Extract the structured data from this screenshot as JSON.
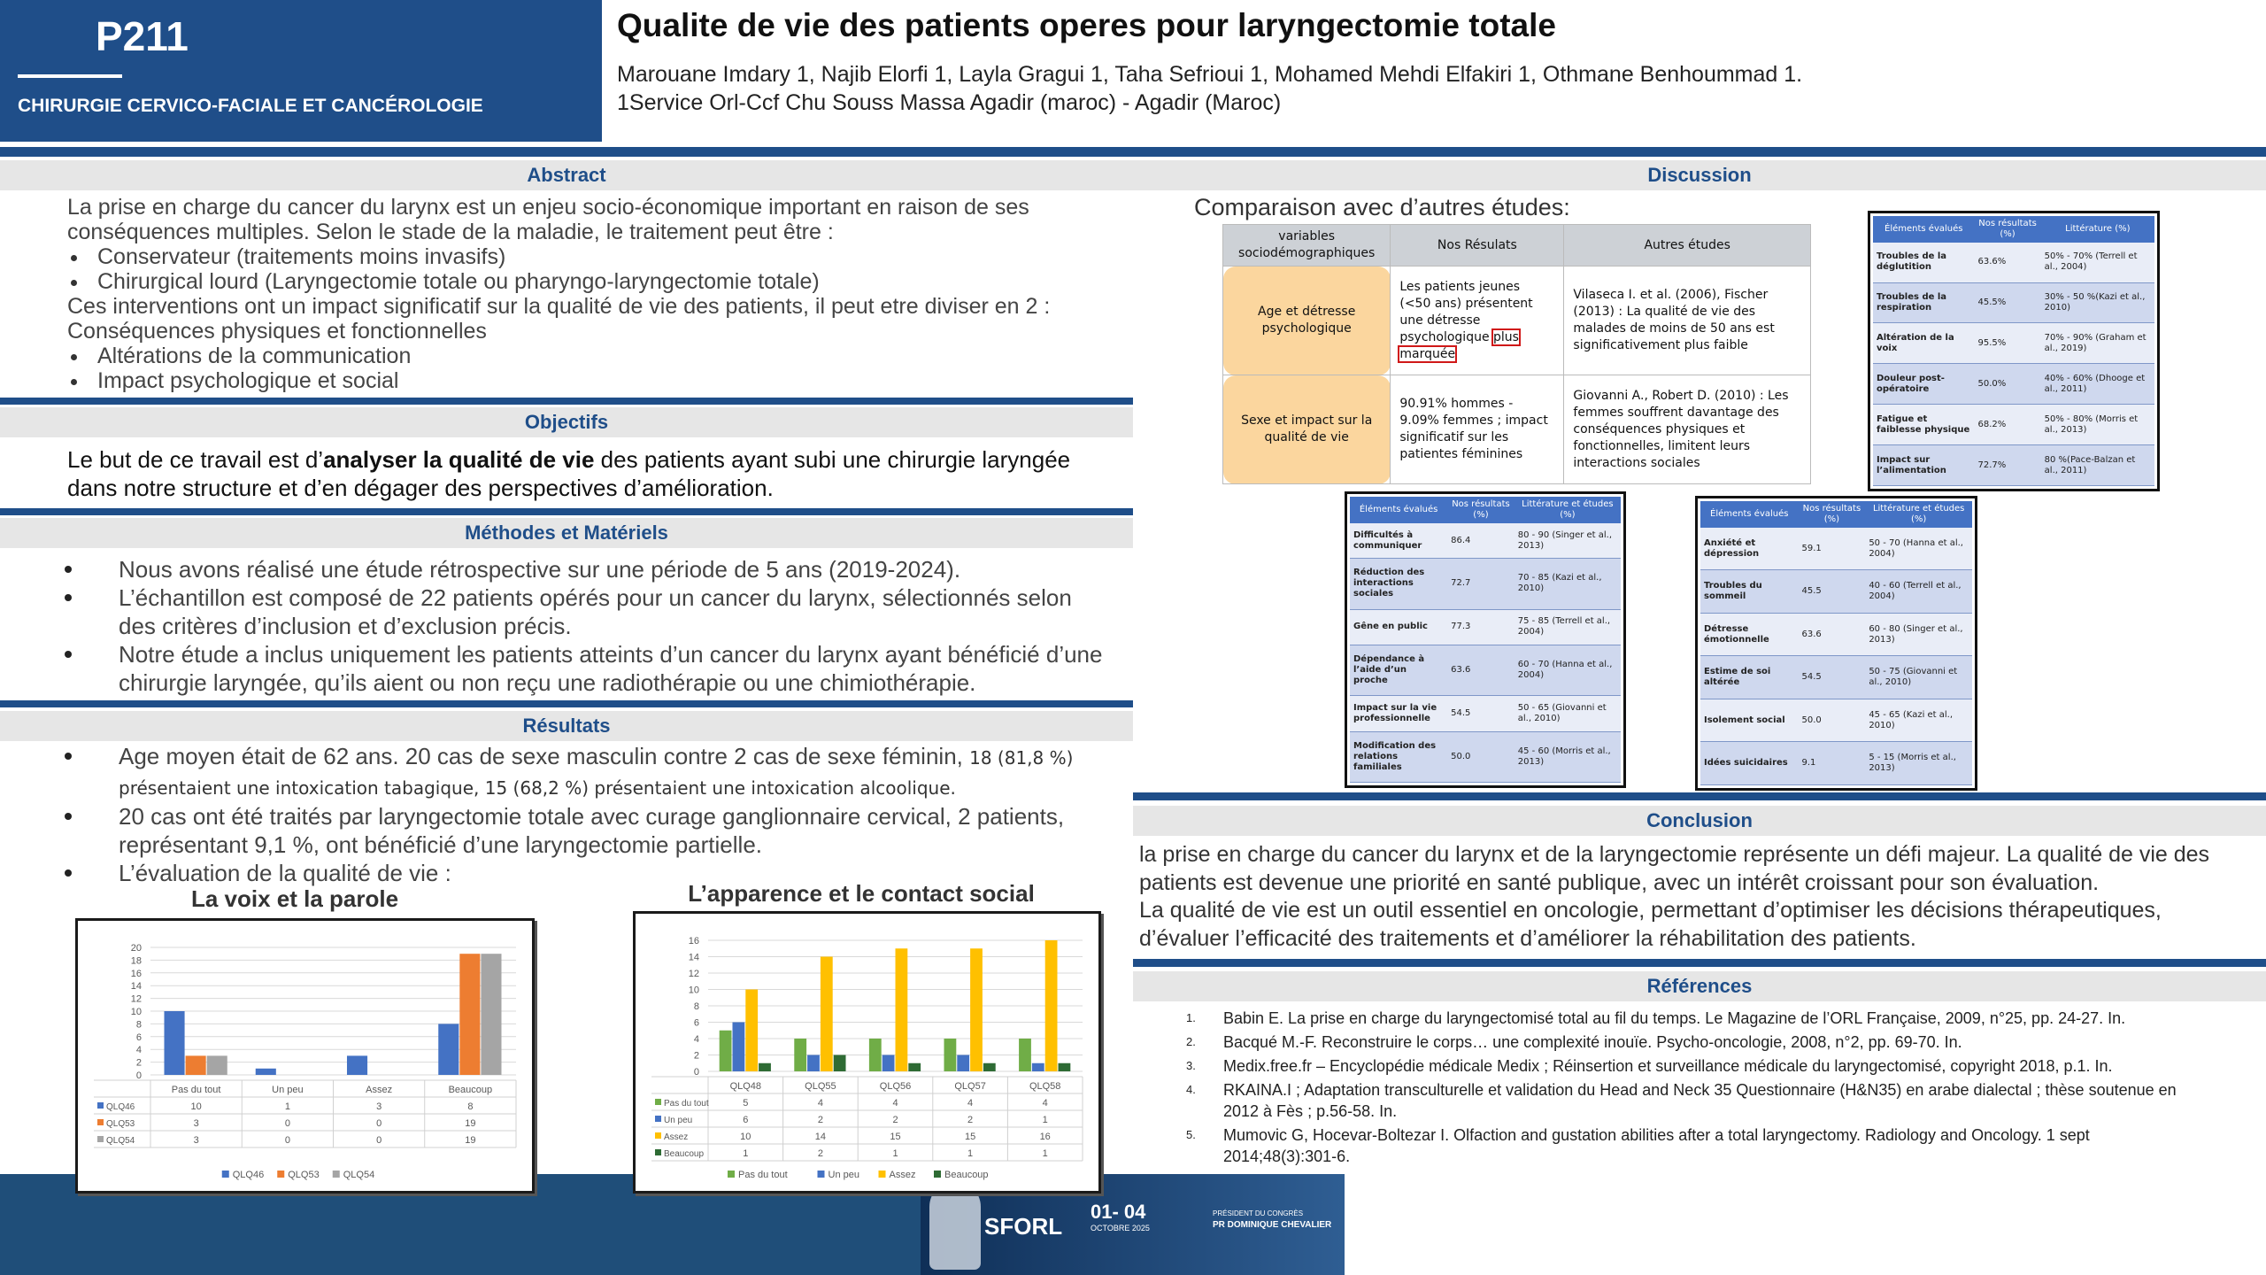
{
  "header": {
    "code": "P211",
    "section": "CHIRURGIE CERVICO-FACIALE ET CANCÉROLOGIE",
    "title": "Qualite de vie des patients operes pour laryngectomie totale",
    "authors": "Marouane Imdary 1, Najib Elorfi 1, Layla Gragui 1, Taha Sefrioui 1, Mohamed Mehdi Elfakiri 1, Othmane Benhoummad 1.",
    "affiliation": "1Service Orl-Ccf Chu Souss Massa Agadir (maroc) - Agadir (Maroc)"
  },
  "abstract": {
    "heading": "Abstract",
    "intro": "La prise en charge du cancer du larynx est un enjeu socio-économique important en raison de ses conséquences multiples. Selon le stade de la maladie, le traitement peut être :",
    "bullets_1": [
      "Conservateur (traitements moins invasifs)",
      "Chirurgical lourd (Laryngectomie totale ou pharyngo-laryngectomie totale)"
    ],
    "middle": [
      "Ces interventions ont un impact significatif sur la qualité de vie des patients, il peut etre diviser en 2 :",
      "Conséquences physiques et fonctionnelles"
    ],
    "bullets_2": [
      "Altérations de la communication",
      "Impact psychologique et social"
    ]
  },
  "objectifs": {
    "heading": "Objectifs",
    "before": "Le but de ce travail est d’",
    "bold": "analyser la qualité de vie",
    "after": " des patients ayant subi une chirurgie laryngée dans notre structure et d’en dégager des perspectives d’amélioration."
  },
  "methodes": {
    "heading": "Méthodes et Matériels",
    "bullets": [
      "Nous avons réalisé une étude rétrospective sur une période de 5 ans (2019-2024).",
      "L’échantillon est composé de 22 patients opérés pour un cancer du larynx, sélectionnés selon des critères d’inclusion et d’exclusion précis.",
      "Notre étude a inclus uniquement les patients atteints d’un cancer du larynx ayant bénéficié d’une chirurgie laryngée, qu’ils aient ou non reçu une radiothérapie ou une chimiothérapie."
    ]
  },
  "resultats": {
    "heading": "Résultats",
    "first_bullet": {
      "text": "Age moyen était de 62 ans. 20 cas de sexe masculin contre 2 cas de sexe féminin,",
      "small": "18 (81,8 %) présentaient une intoxication tabagique, 15 (68,2 %) présentaient une intoxication alcoolique."
    },
    "bullets": [
      "20 cas ont été traités par laryngectomie totale avec curage ganglionnaire cervical, 2 patients, représentant 9,1 %, ont bénéficié d’une laryngectomie partielle.",
      "L’évaluation de la qualité de vie :"
    ]
  },
  "chart_data": [
    {
      "type": "bar",
      "title": "La voix et la parole",
      "categories": [
        "Pas du tout",
        "Un peu",
        "Assez",
        "Beaucoup"
      ],
      "series": [
        {
          "name": "QLQ46",
          "color": "#4472c4",
          "values": [
            10,
            1,
            3,
            8
          ]
        },
        {
          "name": "QLQ53",
          "color": "#ed7d31",
          "values": [
            3,
            0,
            0,
            19
          ]
        },
        {
          "name": "QLQ54",
          "color": "#a5a5a5",
          "values": [
            3,
            0,
            0,
            19
          ]
        }
      ],
      "ylim": [
        0,
        20
      ],
      "yticks": [
        0,
        2,
        4,
        6,
        8,
        10,
        12,
        14,
        16,
        18,
        20
      ],
      "grid": true
    },
    {
      "type": "bar",
      "title": "L’apparence et le contact social",
      "categories": [
        "QLQ48",
        "QLQ55",
        "QLQ56",
        "QLQ57",
        "QLQ58"
      ],
      "series": [
        {
          "name": "Pas du tout",
          "color": "#70ad47",
          "values": [
            5,
            4,
            4,
            4,
            4
          ]
        },
        {
          "name": "Un peu",
          "color": "#4472c4",
          "values": [
            6,
            2,
            2,
            2,
            1
          ]
        },
        {
          "name": "Assez",
          "color": "#ffc000",
          "values": [
            10,
            14,
            15,
            15,
            16
          ]
        },
        {
          "name": "Beaucoup",
          "color": "#2e6b34",
          "values": [
            1,
            2,
            1,
            1,
            1
          ]
        }
      ],
      "ylim": [
        0,
        16
      ],
      "yticks": [
        0,
        2,
        4,
        6,
        8,
        10,
        12,
        14,
        16
      ],
      "grid": true
    }
  ],
  "discussion": {
    "heading": "Discussion",
    "intro": "Comparaison avec d’autres études:",
    "comparison": {
      "headers": [
        "variables sociodémographiques",
        "Nos Résulats",
        "Autres études"
      ],
      "rows": [
        [
          "Age et détresse psychologique",
          {
            "text": "Les patients jeunes (<50 ans) présentent une détresse psychologique ",
            "highlight": "plus marquée"
          },
          "Vilaseca I. et al. (2006), Fischer (2013) : La qualité de vie des malades de moins de 50 ans est significativement plus faible"
        ],
        [
          "Sexe et impact sur la qualité de vie",
          {
            "text": "90.91% hommes - 9.09% femmes ; impact significatif sur les patientes féminines"
          },
          "Giovanni A., Robert D. (2010) : Les femmes souffrent davantage des conséquences physiques et fonctionnelles, limitent leurs interactions sociales"
        ]
      ]
    },
    "table_physique": {
      "headers": [
        "Éléments évalués",
        "Nos résultats (%)",
        "Littérature (%)"
      ],
      "rows": [
        [
          "Troubles de la déglutition",
          "63.6%",
          "50% - 70% (Terrell et al., 2004)"
        ],
        [
          "Troubles de la respiration",
          "45.5%",
          "30% - 50 %(Kazi et al., 2010)"
        ],
        [
          "Altération de la voix",
          "95.5%",
          "70% - 90% (Graham et al., 2019)"
        ],
        [
          "Douleur post-opératoire",
          "50.0%",
          "40% - 60% (Dhooge et al., 2011)"
        ],
        [
          "Fatigue et faiblesse physique",
          "68.2%",
          "50% - 80% (Morris et al., 2013)"
        ],
        [
          "Impact sur l’alimentation",
          "72.7%",
          "80 %(Pace-Balzan et al., 2011)"
        ]
      ]
    },
    "table_social": {
      "headers": [
        "Éléments évalués",
        "Nos résultats (%)",
        "Littérature et études (%)"
      ],
      "rows": [
        [
          "Difficultés à communiquer",
          "86.4",
          "80 - 90 (Singer et al., 2013)"
        ],
        [
          "Réduction des interactions sociales",
          "72.7",
          "70 - 85 (Kazi et al., 2010)"
        ],
        [
          "Gêne en public",
          "77.3",
          "75 - 85 (Terrell et al., 2004)"
        ],
        [
          "Dépendance à l’aide d’un proche",
          "63.6",
          "60 - 70 (Hanna et al., 2004)"
        ],
        [
          "Impact sur la vie professionnelle",
          "54.5",
          "50 - 65 (Giovanni et al., 2010)"
        ],
        [
          "Modification des relations familiales",
          "50.0",
          "45 - 60 (Morris et al., 2013)"
        ]
      ]
    },
    "table_psycho": {
      "headers": [
        "Éléments évalués",
        "Nos résultats (%)",
        "Littérature et études (%)"
      ],
      "rows": [
        [
          "Anxiété et dépression",
          "59.1",
          "50 - 70 (Hanna et al., 2004)"
        ],
        [
          "Troubles du sommeil",
          "45.5",
          "40 - 60 (Terrell et al., 2004)"
        ],
        [
          "Détresse émotionnelle",
          "63.6",
          "60 - 80 (Singer et al., 2013)"
        ],
        [
          "Estime de soi altérée",
          "54.5",
          "50 - 75 (Giovanni et al., 2010)"
        ],
        [
          "Isolement social",
          "50.0",
          "45 - 65 (Kazi et al., 2010)"
        ],
        [
          "Idées suicidaires",
          "9.1",
          "5 - 15 (Morris et al., 2013)"
        ]
      ]
    }
  },
  "conclusion": {
    "heading": "Conclusion",
    "paragraphs": [
      "la prise en charge du cancer du larynx et de la laryngectomie représente un défi majeur. La qualité de vie des patients est devenue une priorité en santé publique, avec un intérêt croissant pour son évaluation.",
      "La qualité de vie est un outil essentiel en oncologie, permettant d’optimiser les décisions thérapeutiques, d’évaluer l’efficacité des traitements et d’améliorer la réhabilitation des patients."
    ]
  },
  "references": {
    "heading": "Références",
    "items": [
      {
        "num": "1.",
        "text": "Babin E.   La prise en charge du laryngectomisé total au fil du temps. Le Magazine de l’ORL Française, 2009, n°25, pp. 24-27. In."
      },
      {
        "num": "2.",
        "text": "Bacqué M.-F. Reconstruire le corps… une complexité inouïe. Psycho-oncologie, 2008, n°2, pp. 69-70. In."
      },
      {
        "num": "3.",
        "text": "Medix.free.fr – Encyclopédie médicale Medix ;  Réinsertion et surveillance médicale du laryngectomisé, copyright 2018, p.1. In."
      },
      {
        "num": "4.",
        "text": "RKAINA.I ; Adaptation transculturelle et validation du Head and Neck 35 Questionnaire (H&N35) en arabe dialectal ; thèse soutenue en 2012 à Fès ; p.56-58. In."
      },
      {
        "num": "5.",
        "text": "Mumovic G, Hocevar-Boltezar I. Olfaction and gustation abilities after a total laryngectomy. Radiology and Oncology. 1 sept 2014;48(3):301-6."
      }
    ]
  },
  "footer": {
    "org": "SFORL",
    "dates": "01- 04",
    "month": "OCTOBRE 2025",
    "president_label": "PRÉSIDENT DU CONGRÈS",
    "president": "PR DOMINIQUE CHEVALIER"
  }
}
